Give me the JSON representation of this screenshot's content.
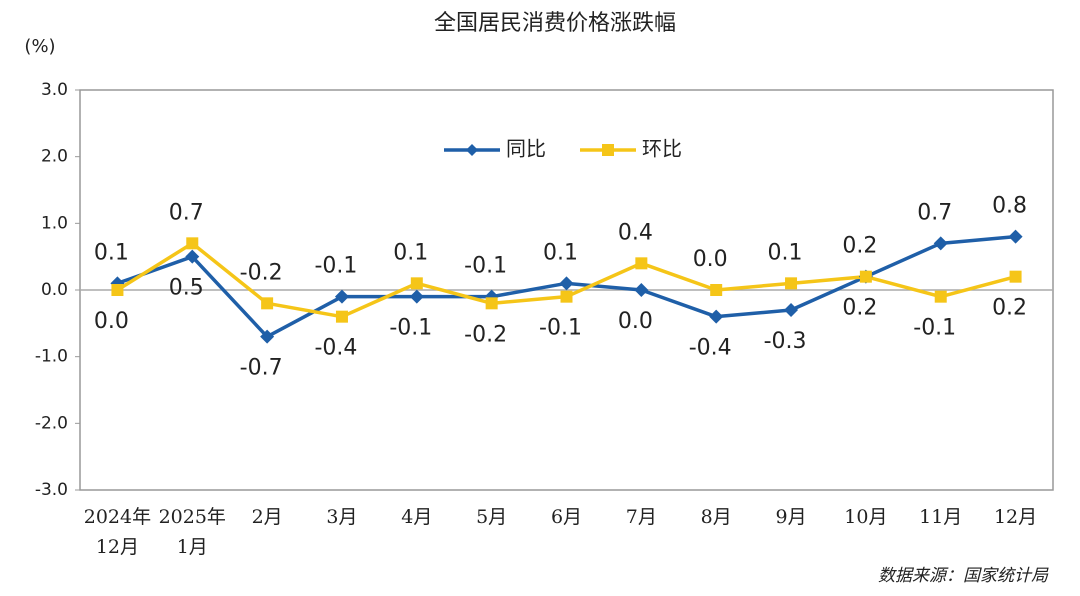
{
  "chart_data": {
    "type": "line",
    "title": "全国居民消费价格涨跌幅",
    "y_unit": "(%)",
    "source": "数据来源：国家统计局",
    "categories": [
      "2024年12月",
      "2025年1月",
      "2月",
      "3月",
      "4月",
      "5月",
      "6月",
      "7月",
      "8月",
      "9月",
      "10月",
      "11月",
      "12月"
    ],
    "series": [
      {
        "name": "同比",
        "color": "#1f5fa8",
        "marker": "diamond",
        "values": [
          0.1,
          0.5,
          -0.7,
          -0.1,
          -0.1,
          -0.1,
          0.1,
          0.0,
          -0.4,
          -0.3,
          0.2,
          0.7,
          0.8
        ],
        "value_labels": [
          "0.1",
          "0.5",
          "-0.7",
          "-0.1",
          "-0.1",
          "-0.1",
          "0.1",
          "0.0",
          "-0.4",
          "-0.3",
          "0.2",
          "0.7",
          "0.8"
        ]
      },
      {
        "name": "环比",
        "color": "#f5c518",
        "marker": "square",
        "values": [
          0.0,
          0.7,
          -0.2,
          -0.4,
          0.1,
          -0.2,
          -0.1,
          0.4,
          0.0,
          0.1,
          0.2,
          -0.1,
          0.2
        ],
        "value_labels": [
          "0.0",
          "0.7",
          "-0.2",
          "-0.4",
          "0.1",
          "-0.2",
          "-0.1",
          "0.4",
          "0.0",
          "0.1",
          "0.2",
          "-0.1",
          "0.2"
        ]
      }
    ],
    "ylim": [
      -3,
      3
    ],
    "yticks": [
      {
        "value": -3,
        "label": "-3.0"
      },
      {
        "value": -2,
        "label": "-2.0"
      },
      {
        "value": -1,
        "label": "-1.0"
      },
      {
        "value": 0,
        "label": "0.0"
      },
      {
        "value": 1,
        "label": "1.0"
      },
      {
        "value": 2,
        "label": "2.0"
      },
      {
        "value": 3,
        "label": "3.0"
      }
    ],
    "legend": "top-center"
  }
}
